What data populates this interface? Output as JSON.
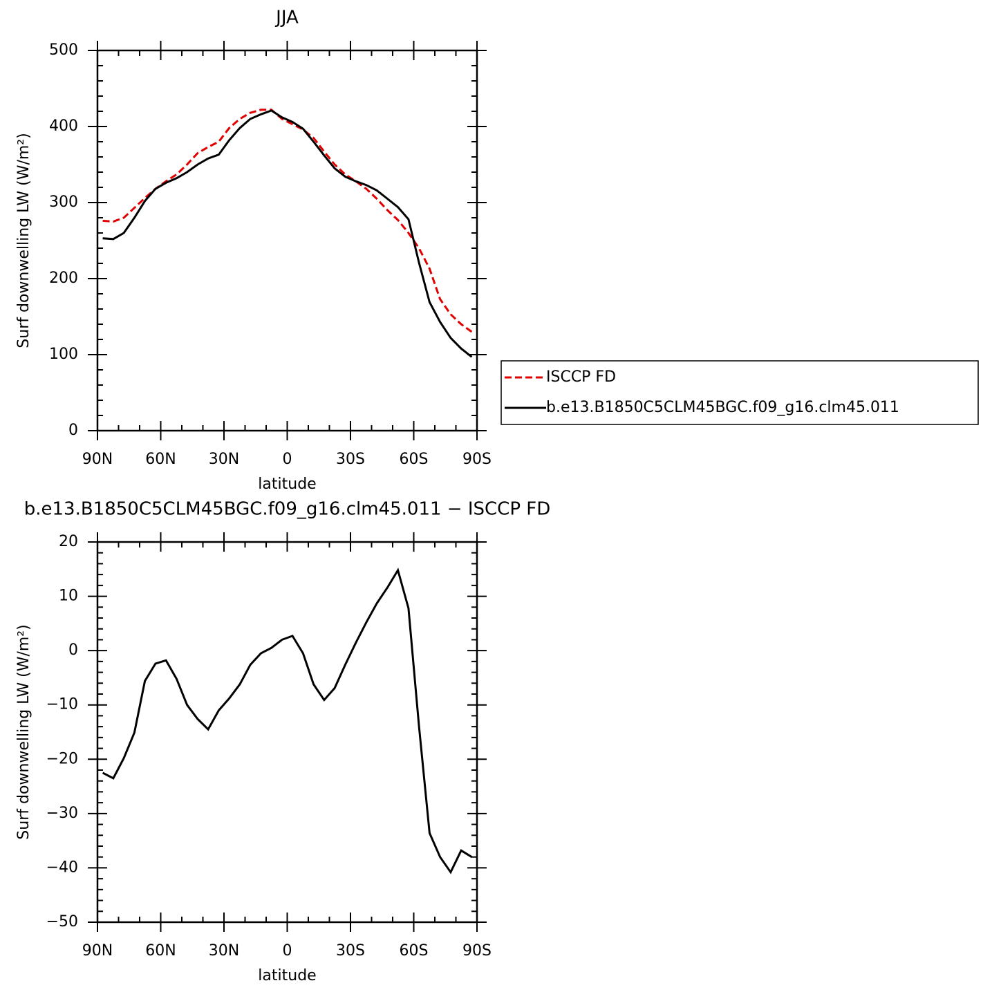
{
  "chart_data": [
    {
      "type": "line",
      "title": "JJA",
      "xlabel": "latitude",
      "ylabel": "Surf downwelling LW (W/m²)",
      "x": [
        87.5,
        82.5,
        77.5,
        72.5,
        67.5,
        62.5,
        57.5,
        52.5,
        47.5,
        42.5,
        37.5,
        32.5,
        27.5,
        22.5,
        17.5,
        12.5,
        7.5,
        2.5,
        -2.5,
        -7.5,
        -12.5,
        -17.5,
        -22.5,
        -27.5,
        -32.5,
        -37.5,
        -42.5,
        -47.5,
        -52.5,
        -57.5,
        -62.5,
        -67.5,
        -72.5,
        -77.5,
        -82.5,
        -87.5
      ],
      "series": [
        {
          "name": "ISCCP FD",
          "color": "#e00000",
          "dash": true,
          "values": [
            276,
            275,
            280,
            293,
            306,
            318,
            328,
            337,
            350,
            365,
            373,
            380,
            398,
            410,
            418,
            422,
            422,
            410,
            403,
            396,
            385,
            367,
            350,
            337,
            328,
            318,
            305,
            290,
            277,
            260,
            240,
            213,
            173,
            153,
            140,
            130
          ]
        },
        {
          "name": "b.e13.B1850C5CLM45BGC.f09_g16.clm45.011",
          "color": "#000000",
          "dash": false,
          "values": [
            253,
            252,
            260,
            280,
            302,
            318,
            326,
            332,
            340,
            350,
            358,
            363,
            382,
            398,
            410,
            416,
            421,
            412,
            406,
            397,
            380,
            362,
            345,
            334,
            328,
            323,
            316,
            305,
            294,
            278,
            221,
            169,
            143,
            122,
            108,
            97
          ]
        }
      ],
      "xlim": [
        90,
        -90
      ],
      "xticks": [
        {
          "value": 90,
          "label": "90N"
        },
        {
          "value": 60,
          "label": "60N"
        },
        {
          "value": 30,
          "label": "30N"
        },
        0,
        {
          "value": -30,
          "label": "30S"
        },
        {
          "value": -60,
          "label": "60S"
        },
        {
          "value": -90,
          "label": "90S"
        }
      ],
      "ylim": [
        0,
        500
      ],
      "yticks": [
        0,
        100,
        200,
        300,
        400,
        500
      ],
      "legend": "right"
    },
    {
      "type": "line",
      "title": "b.e13.B1850C5CLM45BGC.f09_g16.clm45.011 − ISCCP FD",
      "xlabel": "latitude",
      "ylabel": "Surf downwelling LW (W/m²)",
      "x": [
        87.5,
        82.5,
        77.5,
        72.5,
        67.5,
        62.5,
        57.5,
        52.5,
        47.5,
        42.5,
        37.5,
        32.5,
        27.5,
        22.5,
        17.5,
        12.5,
        7.5,
        2.5,
        -2.5,
        -7.5,
        -12.5,
        -17.5,
        -22.5,
        -27.5,
        -32.5,
        -37.5,
        -42.5,
        -47.5,
        -52.5,
        -57.5,
        -62.5,
        -67.5,
        -72.5,
        -77.5,
        -82.5,
        -87.5
      ],
      "series": [
        {
          "color": "#000000",
          "dash": false,
          "values": [
            -22.5,
            -23.5,
            -19.8,
            -15.1,
            -5.6,
            -2.4,
            -1.8,
            -5.2,
            -10,
            -12.6,
            -14.5,
            -11,
            -8.8,
            -6.2,
            -2.6,
            -0.5,
            0.5,
            2,
            2.7,
            -0.5,
            -6.2,
            -9.1,
            -6.9,
            -2.6,
            1.4,
            5.2,
            8.7,
            11.6,
            14.8,
            7.8,
            -13.9,
            -33.6,
            -38,
            -40.8,
            -36.8,
            -38
          ]
        }
      ],
      "xlim": [
        90,
        -90
      ],
      "xticks": [
        {
          "value": 90,
          "label": "90N"
        },
        {
          "value": 60,
          "label": "60N"
        },
        {
          "value": 30,
          "label": "30N"
        },
        0,
        {
          "value": -30,
          "label": "30S"
        },
        {
          "value": -60,
          "label": "60S"
        },
        {
          "value": -90,
          "label": "90S"
        }
      ],
      "ylim": [
        -50,
        20
      ],
      "yticks": [
        {
          "value": -50,
          "label": "−50"
        },
        {
          "value": -40,
          "label": "−40"
        },
        {
          "value": -30,
          "label": "−30"
        },
        {
          "value": -20,
          "label": "−20"
        },
        {
          "value": -10,
          "label": "−10"
        },
        0,
        10,
        20
      ]
    }
  ]
}
